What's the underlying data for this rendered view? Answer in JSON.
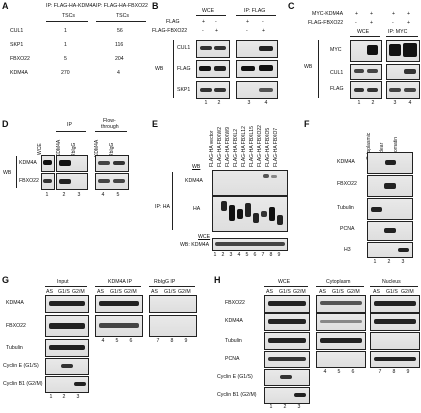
{
  "panels": {
    "A": {
      "letter": "A",
      "header_col1": "IP: FLAG-HA-KDM4A",
      "header_col2": "IP: FLAG-HA-FBXO22",
      "subheader_col1": "TSCs",
      "subheader_col2": "TSCs",
      "rows": [
        {
          "name": "CUL1",
          "c1": "1",
          "c2": "56"
        },
        {
          "name": "SKP1",
          "c1": "1",
          "c2": "116"
        },
        {
          "name": "FBXO22",
          "c1": "5",
          "c2": "204"
        },
        {
          "name": "KDM4A",
          "c1": "270",
          "c2": "4"
        }
      ]
    },
    "B": {
      "letter": "B",
      "hdr_wce": "WCE",
      "hdr_ip": "IP: FLAG",
      "row1": "FLAG",
      "row2": "FLAG-FBXO22",
      "r1": [
        "+",
        "-",
        "+",
        "-"
      ],
      "r2": [
        "-",
        "+",
        "-",
        "+"
      ],
      "wb": "WB",
      "blots": [
        "CUL1",
        "FLAG",
        "SKP1"
      ],
      "lanes": [
        "1",
        "2",
        "3",
        "4"
      ]
    },
    "C": {
      "letter": "C",
      "row1": "MYC-KDM4A",
      "row2": "FLAG-FBXO22",
      "r1": [
        "+",
        "+",
        "+",
        "+"
      ],
      "r2": [
        "-",
        "+",
        "-",
        "+"
      ],
      "hdr_wce": "WCE",
      "hdr_ip": "IP: MYC",
      "wb": "WB",
      "blots": [
        "MYC",
        "CUL1",
        "FLAG"
      ],
      "lanes": [
        "1",
        "2",
        "3",
        "4"
      ]
    },
    "D": {
      "letter": "D",
      "hdr_ip": "IP",
      "hdr_ft": "Flow-",
      "hdr_ft2": "through",
      "cols": [
        "WCE",
        "KDM4A",
        "RbIgG",
        "KDM4A",
        "RbIgG"
      ],
      "wb": "WB",
      "blots": [
        "KDM4A",
        "FBXO22"
      ],
      "lanes": [
        "1",
        "2",
        "3",
        "4",
        "5"
      ]
    },
    "E": {
      "letter": "E",
      "cols": [
        "FLAG-HA vector",
        "FLAG-HA FBXW2",
        "FLAG-HA FBXW9",
        "FLAG-HA FBXL2",
        "FLAG-HA FBXL12",
        "FLAG-HA FBXL15",
        "FLAG-HA FBXO22",
        "FLAG-HA FBXO5",
        "FLAG-HA FBXO7"
      ],
      "wb": "WB",
      "ip": "IP: HA",
      "blots": [
        "KDM4A",
        "HA"
      ],
      "wce_label": "WCE",
      "wce_blot": "WB: KDM4A",
      "lanes": [
        "1",
        "2",
        "3",
        "4",
        "5",
        "6",
        "7",
        "8",
        "9"
      ]
    },
    "F": {
      "letter": "F",
      "cols": [
        "Cytoplasmic",
        "Nuclear",
        "Chromatin"
      ],
      "blots": [
        "KDM4A",
        "FBXO22",
        "Tubulin",
        "PCNA",
        "H3"
      ],
      "lanes": [
        "1",
        "2",
        "3"
      ]
    },
    "G": {
      "letter": "G",
      "hdr_input": "Input",
      "hdr_ip": "KDM4A IP",
      "hdr_igg": "RbIgG IP",
      "phases": [
        "AS",
        "G1/S",
        "G2/M"
      ],
      "blots": [
        "KDM4A",
        "FBXO22",
        "Tubulin",
        "Cyclin E (G1/S)",
        "Cyclin B1 (G2/M)"
      ],
      "lanes": [
        "1",
        "2",
        "3",
        "4",
        "5",
        "6",
        "7",
        "8",
        "9"
      ]
    },
    "H": {
      "letter": "H",
      "hdr_wce": "WCE",
      "hdr_cyto": "Cytoplasm",
      "hdr_nuc": "Nucleus",
      "phases": [
        "AS",
        "G1/S",
        "G2/M"
      ],
      "blots": [
        "FBXO22",
        "KDM4A",
        "Tubulin",
        "PCNA",
        "Cyclin E (G1/S)",
        "Cyclin B1 (G2/M)"
      ],
      "lanes": [
        "1",
        "2",
        "3",
        "4",
        "5",
        "6",
        "7",
        "8",
        "9"
      ]
    }
  }
}
